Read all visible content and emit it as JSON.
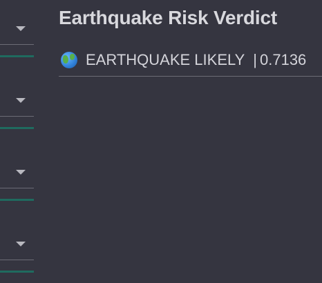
{
  "header": {
    "title": "Earthquake Risk Verdict"
  },
  "verdict": {
    "icon": "globe-icon",
    "label": "EARTHQUAKE LIKELY",
    "separator": "|",
    "score": "0.7136"
  },
  "colors": {
    "background": "#353540",
    "accent": "#1f6b5f"
  }
}
